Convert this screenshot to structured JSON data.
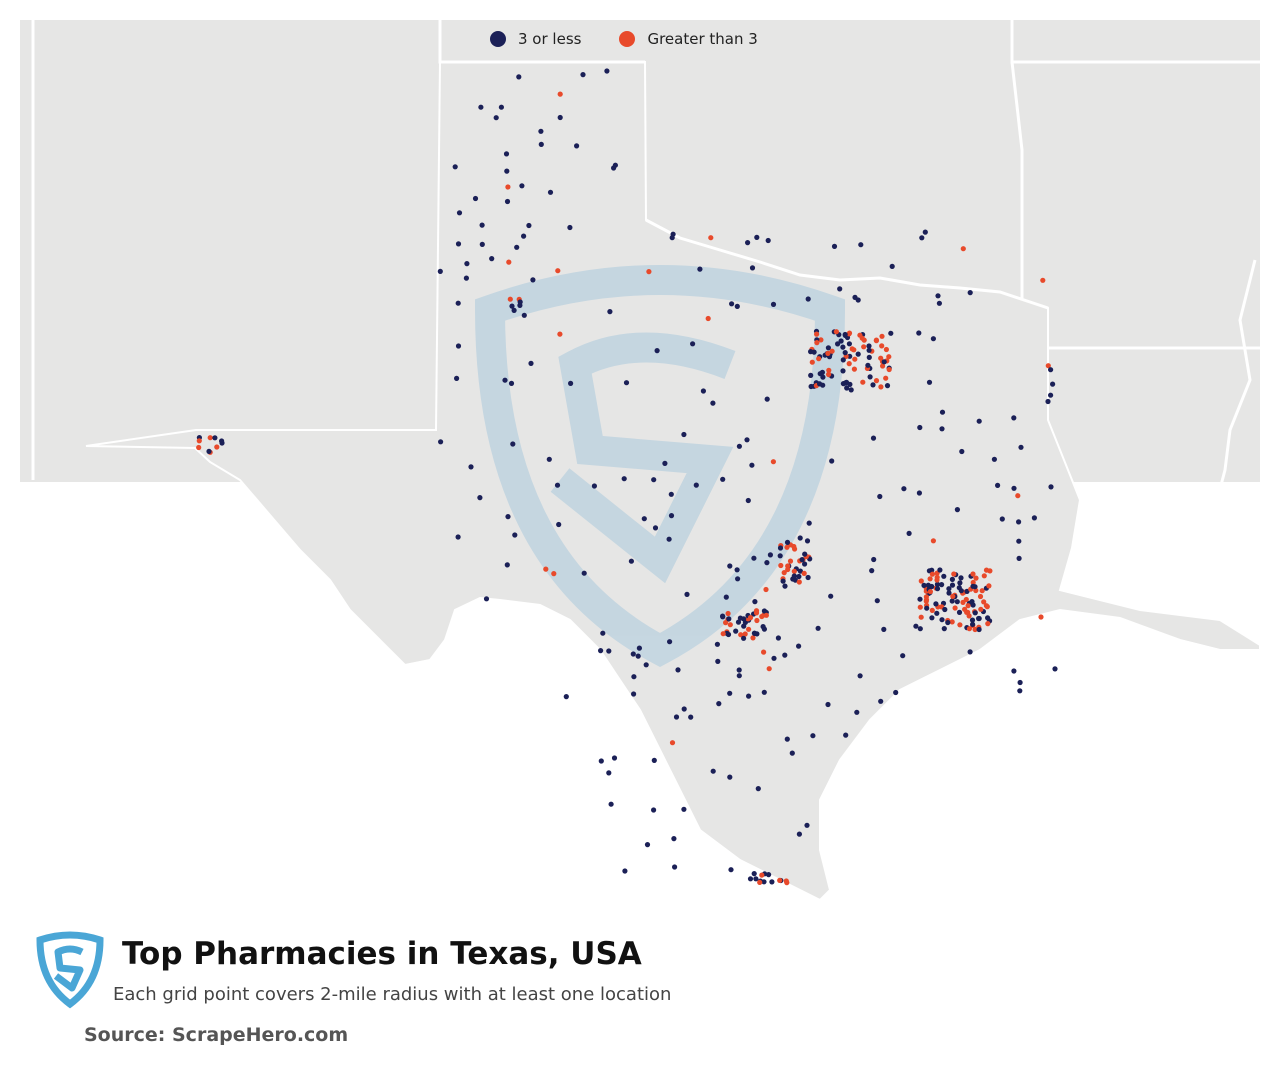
{
  "map": {
    "region": "Texas",
    "colors": {
      "land": "#e6e6e5",
      "state_border": "#ffffff",
      "water": "#ffffff",
      "watermark": "#b8d0df"
    }
  },
  "legend": {
    "items": [
      {
        "label": "3 or less",
        "color": "#1b2057"
      },
      {
        "label": "Greater than 3",
        "color": "#e84a2b"
      }
    ]
  },
  "footer": {
    "logo_icon": "scrapehero-shield-icon",
    "logo_color": "#4aa6d6",
    "title": "Top Pharmacies in Texas, USA",
    "subtitle": "Each grid point covers 2-mile radius with at least one location",
    "source": "Source: ScrapeHero.com"
  }
}
